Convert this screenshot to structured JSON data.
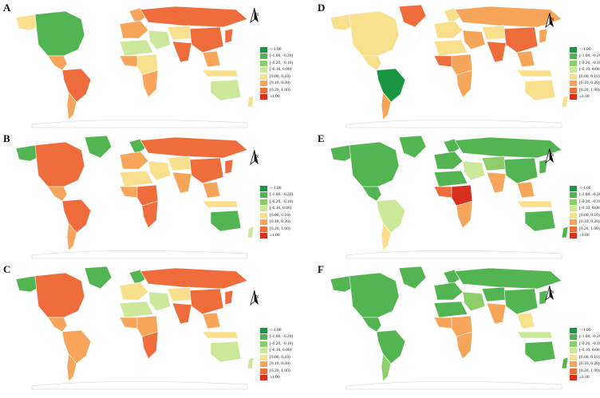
{
  "legend": {
    "labels": [
      "<-1.00",
      "[-1.00, -0.20)",
      "[-0.20, -0.10)",
      "[-0.10, 0.00)",
      "[0.00, 0.10)",
      "[0.10, 0.20)",
      "[0.20, 1.00)",
      "≥1.00"
    ],
    "colors": [
      "#1a9641",
      "#52b552",
      "#8ccd6a",
      "#cde89a",
      "#f9e08e",
      "#f7a55a",
      "#ef6c3d",
      "#d7301f"
    ]
  },
  "north_label": "N",
  "panels": [
    {
      "label": "A",
      "fills": {
        "northamerica": "#52b552",
        "alaska": "#f9e08e",
        "greenland": "#ffffff",
        "centralamerica": "#f7a55a",
        "southamerica": "#ef6c3d",
        "southcone": "#f7a55a",
        "europe": "#f7a55a",
        "scandinavia": "#f7a55a",
        "northafrica": "#cde89a",
        "westafrica": "#f7a55a",
        "centralafrica": "#f9e08e",
        "southafrica": "#f7a55a",
        "middleeast": "#cde89a",
        "russia": "#ef6c3d",
        "centralasia": "#f9e08e",
        "china": "#ef6c3d",
        "india": "#ef6c3d",
        "seasia": "#f7a55a",
        "indonesia": "#f9e08e",
        "australia": "#cde89a",
        "japan": "#ef6c3d",
        "newzealand": "#f9e08e"
      }
    },
    {
      "label": "D",
      "fills": {
        "northamerica": "#f9e08e",
        "alaska": "#f9e08e",
        "greenland": "#ef6c3d",
        "centralamerica": "#f9e08e",
        "southamerica": "#1a9641",
        "southcone": "#f7a55a",
        "europe": "#f9e08e",
        "scandinavia": "#f9e08e",
        "northafrica": "#f9e08e",
        "westafrica": "#ef6c3d",
        "centralafrica": "#f7a55a",
        "southafrica": "#f7a55a",
        "middleeast": "#f7a55a",
        "russia": "#f7a55a",
        "centralasia": "#f9e08e",
        "china": "#ef6c3d",
        "india": "#ef6c3d",
        "seasia": "#f7a55a",
        "indonesia": "#f9e08e",
        "australia": "#f9e08e",
        "japan": "#f7a55a",
        "newzealand": "#f9e08e"
      }
    },
    {
      "label": "B",
      "fills": {
        "northamerica": "#ef6c3d",
        "alaska": "#52b552",
        "greenland": "#52b552",
        "centralamerica": "#f7a55a",
        "southamerica": "#ef6c3d",
        "southcone": "#f7a55a",
        "europe": "#f7a55a",
        "scandinavia": "#52b552",
        "northafrica": "#f9e08e",
        "westafrica": "#f7a55a",
        "centralafrica": "#ef6c3d",
        "southafrica": "#ef6c3d",
        "middleeast": "#f9e08e",
        "russia": "#ef6c3d",
        "centralasia": "#f9e08e",
        "china": "#ef6c3d",
        "india": "#f7a55a",
        "seasia": "#f7a55a",
        "indonesia": "#f9e08e",
        "australia": "#52b552",
        "japan": "#ef6c3d",
        "newzealand": "#cde89a"
      }
    },
    {
      "label": "E",
      "fills": {
        "northamerica": "#52b552",
        "alaska": "#52b552",
        "greenland": "#52b552",
        "centralamerica": "#52b552",
        "southamerica": "#cde89a",
        "southcone": "#f9e08e",
        "europe": "#52b552",
        "scandinavia": "#52b552",
        "northafrica": "#52b552",
        "westafrica": "#ef6c3d",
        "centralafrica": "#d7301f",
        "southafrica": "#f7a55a",
        "middleeast": "#cde89a",
        "russia": "#52b552",
        "centralasia": "#8ccd6a",
        "china": "#52b552",
        "india": "#f7a55a",
        "seasia": "#f7a55a",
        "indonesia": "#f9e08e",
        "australia": "#52b552",
        "japan": "#52b552",
        "newzealand": "#52b552"
      }
    },
    {
      "label": "C",
      "fills": {
        "northamerica": "#ef6c3d",
        "alaska": "#52b552",
        "greenland": "#52b552",
        "centralamerica": "#f7a55a",
        "southamerica": "#f7a55a",
        "southcone": "#f7a55a",
        "europe": "#f9e08e",
        "scandinavia": "#52b552",
        "northafrica": "#cde89a",
        "westafrica": "#f7a55a",
        "centralafrica": "#f7a55a",
        "southafrica": "#ef6c3d",
        "middleeast": "#cde89a",
        "russia": "#ef6c3d",
        "centralasia": "#f9e08e",
        "china": "#ef6c3d",
        "india": "#ef6c3d",
        "seasia": "#f7a55a",
        "indonesia": "#f9e08e",
        "australia": "#cde89a",
        "japan": "#ef6c3d",
        "newzealand": "#cde89a"
      }
    },
    {
      "label": "F",
      "fills": {
        "northamerica": "#52b552",
        "alaska": "#52b552",
        "greenland": "#52b552",
        "centralamerica": "#52b552",
        "southamerica": "#52b552",
        "southcone": "#8ccd6a",
        "europe": "#52b552",
        "scandinavia": "#52b552",
        "northafrica": "#52b552",
        "westafrica": "#f7a55a",
        "centralafrica": "#f7a55a",
        "southafrica": "#f7a55a",
        "middleeast": "#8ccd6a",
        "russia": "#52b552",
        "centralasia": "#52b552",
        "china": "#52b552",
        "india": "#f7a55a",
        "seasia": "#f9e08e",
        "indonesia": "#cde89a",
        "australia": "#52b552",
        "japan": "#52b552",
        "newzealand": "#52b552"
      }
    }
  ]
}
